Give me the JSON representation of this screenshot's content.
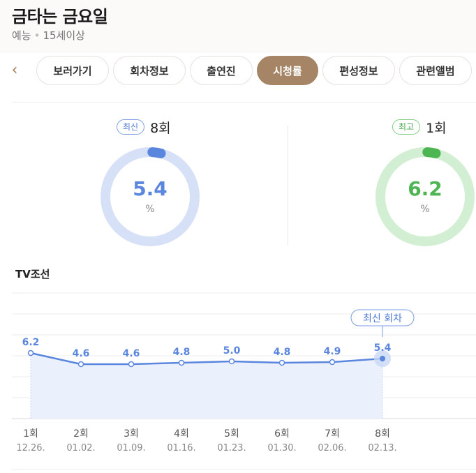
{
  "header": {
    "title": "금타는 금요일",
    "genre": "예능",
    "rating": "15세이상"
  },
  "tabs": {
    "back_icon": "chevron-left-icon",
    "items": [
      {
        "label": "보러가기",
        "active": false
      },
      {
        "label": "회차정보",
        "active": false
      },
      {
        "label": "출연진",
        "active": false
      },
      {
        "label": "시청률",
        "active": true
      },
      {
        "label": "편성정보",
        "active": false
      },
      {
        "label": "관련앨범",
        "active": false
      }
    ]
  },
  "stats": {
    "latest": {
      "badge": "최신",
      "episode": "8회",
      "value": "5.4",
      "unit": "%"
    },
    "best": {
      "badge": "최고",
      "episode": "1회",
      "value": "6.2",
      "unit": "%"
    }
  },
  "colors": {
    "blue": "#5a86de",
    "blue_light": "#d6e1f8",
    "green": "#4db552",
    "green_light": "#d3efd3",
    "accent": "#a58566"
  },
  "channel": "TV조선",
  "chart_data": {
    "type": "area",
    "categories": [
      "1회",
      "2회",
      "3회",
      "4회",
      "5회",
      "6회",
      "7회",
      "8회"
    ],
    "dates": [
      "12.26.",
      "01.02.",
      "01.09.",
      "01.16.",
      "01.23.",
      "01.30.",
      "02.06.",
      "02.13."
    ],
    "series": [
      {
        "values": [
          6.2,
          4.6,
          4.6,
          4.8,
          5.0,
          4.8,
          4.9,
          5.4
        ]
      }
    ],
    "annotation": {
      "index": 7,
      "label": "최신 회차"
    },
    "grid": true
  }
}
